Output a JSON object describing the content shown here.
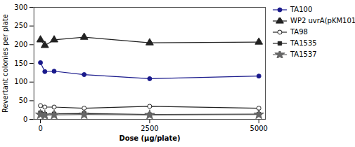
{
  "chart_data": {
    "type": "line",
    "xlabel": "Dose (μg/plate)",
    "ylabel": "Revertant colonies per plate",
    "x": [
      0,
      100,
      313,
      1000,
      2500,
      5000
    ],
    "series": [
      {
        "name": "TA100",
        "color": "#1a1a8c",
        "marker": "circle",
        "values": [
          152,
          128,
          129,
          120,
          109,
          116
        ]
      },
      {
        "name": "WP2 uvrA(pKM101)",
        "color": "#222222",
        "marker": "triangle",
        "values": [
          213,
          198,
          213,
          220,
          205,
          207
        ]
      },
      {
        "name": "TA98",
        "color": "#222222",
        "marker": "circle-open",
        "values": [
          37,
          33,
          33,
          30,
          35,
          30
        ]
      },
      {
        "name": "TA1535",
        "color": "#222222",
        "marker": "square",
        "values": [
          18,
          14,
          15,
          16,
          13,
          14
        ]
      },
      {
        "name": "TA1537",
        "color": "#666666",
        "marker": "star",
        "values": [
          13,
          11,
          12,
          13,
          12,
          13
        ]
      }
    ],
    "xlim": [
      -150,
      5150
    ],
    "xticks": [
      0,
      2500,
      5000
    ],
    "ylim": [
      0,
      300
    ],
    "yticks": [
      0,
      50,
      100,
      150,
      200,
      250,
      300
    ],
    "grid": false,
    "legend": "right"
  }
}
